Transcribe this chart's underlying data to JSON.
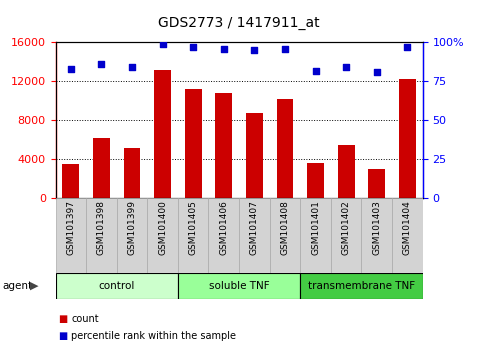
{
  "title": "GDS2773 / 1417911_at",
  "categories": [
    "GSM101397",
    "GSM101398",
    "GSM101399",
    "GSM101400",
    "GSM101405",
    "GSM101406",
    "GSM101407",
    "GSM101408",
    "GSM101401",
    "GSM101402",
    "GSM101403",
    "GSM101404"
  ],
  "counts": [
    3500,
    6200,
    5200,
    13200,
    11200,
    10800,
    8800,
    10200,
    3600,
    5500,
    3000,
    12200
  ],
  "percentiles": [
    83,
    86,
    84,
    99,
    97,
    96,
    95,
    96,
    82,
    84,
    81,
    97
  ],
  "bar_color": "#cc0000",
  "dot_color": "#0000cc",
  "ylim_left": [
    0,
    16000
  ],
  "ylim_right": [
    0,
    100
  ],
  "yticks_left": [
    0,
    4000,
    8000,
    12000,
    16000
  ],
  "yticks_right": [
    0,
    25,
    50,
    75,
    100
  ],
  "yticklabels_right": [
    "0",
    "25",
    "50",
    "75",
    "100%"
  ],
  "groups": [
    {
      "label": "control",
      "start": 0,
      "end": 4,
      "color": "#ccffcc"
    },
    {
      "label": "soluble TNF",
      "start": 4,
      "end": 8,
      "color": "#99ff99"
    },
    {
      "label": "transmembrane TNF",
      "start": 8,
      "end": 12,
      "color": "#44cc44"
    }
  ],
  "agent_label": "agent",
  "legend_items": [
    {
      "label": "count",
      "color": "#cc0000"
    },
    {
      "label": "percentile rank within the sample",
      "color": "#0000cc"
    }
  ],
  "bg_color": "#ffffff",
  "sample_box_color": "#d3d3d3",
  "sample_box_edge": "#aaaaaa"
}
